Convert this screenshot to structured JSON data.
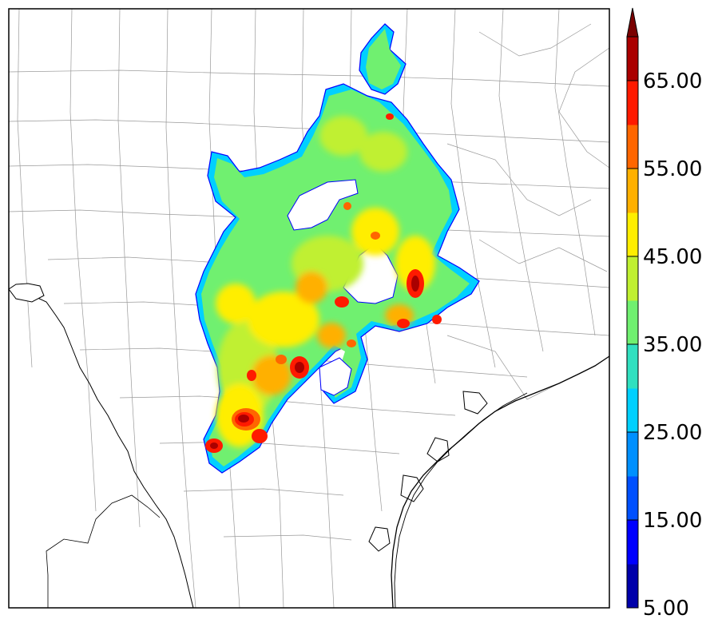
{
  "colorbar": {
    "levels": [
      5,
      10,
      15,
      20,
      25,
      30,
      35,
      40,
      45,
      50,
      55,
      60,
      65,
      70
    ],
    "colors": [
      "#0000aa",
      "#0000ff",
      "#0050ff",
      "#0090ff",
      "#00d0ff",
      "#30e0c0",
      "#70f070",
      "#c0f030",
      "#ffee00",
      "#ffb000",
      "#ff6600",
      "#ff1a00",
      "#aa0000"
    ],
    "extend_color": "#7a0000",
    "tick_labels": [
      "5.00",
      "15.00",
      "25.00",
      "35.00",
      "45.00",
      "55.00",
      "65.00"
    ]
  },
  "map": {
    "background_color": "#ffffff",
    "county_line_color": "#999999",
    "coast_line_color": "#000000"
  }
}
